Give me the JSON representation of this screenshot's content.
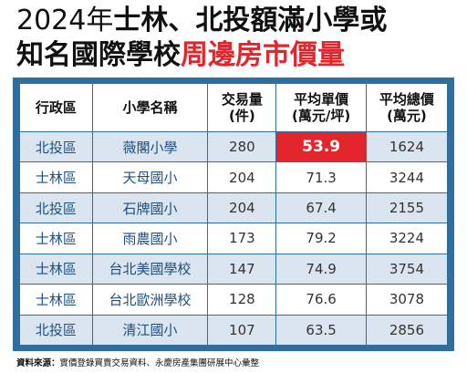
{
  "title": {
    "line1_year": "2024年",
    "line1_rest": "士林、北投額滿小學或",
    "line2_black": "知名國際學校",
    "line2_red": "周邊房市價量"
  },
  "table": {
    "headers": [
      "行政區",
      "小學名稱",
      "交易量\n(件)",
      "平均單價\n(萬元/坪)",
      "平均總價\n(萬元)"
    ],
    "rows": [
      {
        "district": "北投區",
        "school": "薇閣小學",
        "volume": "280",
        "unit_price": "53.9",
        "total_price": "1624"
      },
      {
        "district": "士林區",
        "school": "天母國小",
        "volume": "204",
        "unit_price": "71.3",
        "total_price": "3244"
      },
      {
        "district": "北投區",
        "school": "石牌國小",
        "volume": "204",
        "unit_price": "67.4",
        "total_price": "2155"
      },
      {
        "district": "士林區",
        "school": "雨農國小",
        "volume": "173",
        "unit_price": "79.2",
        "total_price": "3224"
      },
      {
        "district": "士林區",
        "school": "台北美國學校",
        "volume": "147",
        "unit_price": "74.9",
        "total_price": "3754"
      },
      {
        "district": "士林區",
        "school": "台北歐洲學校",
        "volume": "128",
        "unit_price": "76.6",
        "total_price": "3078"
      },
      {
        "district": "北投區",
        "school": "清江國小",
        "volume": "107",
        "unit_price": "63.5",
        "total_price": "2856"
      }
    ]
  },
  "source": {
    "label": "資料來源：",
    "text": "實價登錄買賣交易資料、永慶房產集團研展中心彙整"
  },
  "colors": {
    "accent_red": "#e3262c",
    "table_blue": "#2f6fa0",
    "row_tint": "#dbe5ef"
  }
}
